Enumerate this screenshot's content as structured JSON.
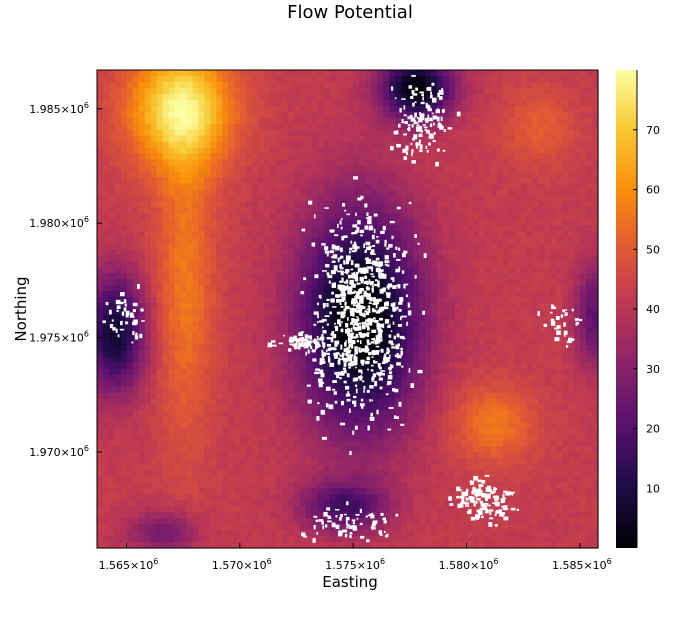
{
  "chart_data": {
    "type": "heatmap",
    "title": "Flow Potential",
    "xlabel": "Easting",
    "ylabel": "Northing",
    "xlim": [
      1563700,
      1585800
    ],
    "ylim": [
      1965800,
      1986700
    ],
    "x_ticks": [
      {
        "value": 1565000,
        "mantissa": "1.565",
        "exp": "6"
      },
      {
        "value": 1570000,
        "mantissa": "1.570",
        "exp": "6"
      },
      {
        "value": 1575000,
        "mantissa": "1.575",
        "exp": "6"
      },
      {
        "value": 1580000,
        "mantissa": "1.580",
        "exp": "6"
      },
      {
        "value": 1585000,
        "mantissa": "1.585",
        "exp": "6"
      }
    ],
    "y_ticks": [
      {
        "value": 1970000,
        "mantissa": "1.970",
        "exp": "6"
      },
      {
        "value": 1975000,
        "mantissa": "1.975",
        "exp": "6"
      },
      {
        "value": 1980000,
        "mantissa": "1.980",
        "exp": "6"
      },
      {
        "value": 1985000,
        "mantissa": "1.985",
        "exp": "6"
      }
    ],
    "colorbar": {
      "colormap": "inferno",
      "range": [
        0,
        80
      ],
      "ticks": [
        "10",
        "20",
        "30",
        "40",
        "50",
        "60",
        "70"
      ],
      "tick_values": [
        10,
        20,
        30,
        40,
        50,
        60,
        70
      ]
    },
    "masked_color": "#ffffff",
    "grid": false,
    "field": {
      "base": 42,
      "high_zones": [
        {
          "x": 1567400,
          "y": 1985000,
          "sx": 2300,
          "sy": 2600,
          "amp": 34
        },
        {
          "x": 1567600,
          "y": 1977500,
          "sx": 1300,
          "sy": 7000,
          "amp": 14
        },
        {
          "x": 1581200,
          "y": 1971200,
          "sx": 1800,
          "sy": 1700,
          "amp": 14
        },
        {
          "x": 1583200,
          "y": 1984200,
          "sx": 1600,
          "sy": 1700,
          "amp": 9
        }
      ],
      "low_zones": [
        {
          "x": 1575300,
          "y": 1975800,
          "sx": 2600,
          "sy": 4800,
          "amp": 46
        },
        {
          "x": 1577800,
          "y": 1985900,
          "sx": 1600,
          "sy": 1400,
          "amp": 42
        },
        {
          "x": 1564500,
          "y": 1975200,
          "sx": 1300,
          "sy": 2500,
          "amp": 36
        },
        {
          "x": 1574600,
          "y": 1967600,
          "sx": 1900,
          "sy": 1100,
          "amp": 24
        },
        {
          "x": 1566600,
          "y": 1966500,
          "sx": 1500,
          "sy": 900,
          "amp": 16
        },
        {
          "x": 1585600,
          "y": 1976000,
          "sx": 800,
          "sy": 2200,
          "amp": 20
        }
      ]
    }
  }
}
